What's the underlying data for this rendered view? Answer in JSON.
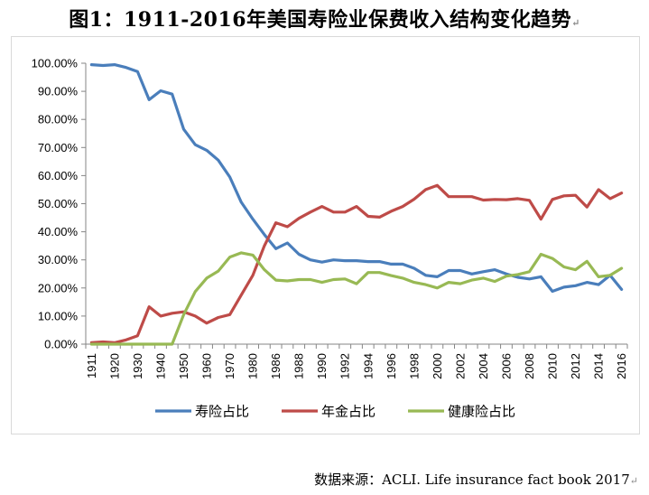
{
  "title": "图1：1911-2016年美国寿险业保费收入结构变化趋势",
  "source": "数据来源：ACLI. Life insurance fact book 2017",
  "chart_data": {
    "type": "line",
    "x": [
      "1911",
      "1915",
      "1920",
      "1925",
      "1930",
      "1935",
      "1940",
      "1945",
      "1950",
      "1955",
      "1960",
      "1965",
      "1970",
      "1975",
      "1980",
      "1985",
      "1986",
      "1987",
      "1988",
      "1989",
      "1990",
      "1991",
      "1992",
      "1993",
      "1994",
      "1995",
      "1996",
      "1997",
      "1998",
      "1999",
      "2000",
      "2001",
      "2002",
      "2003",
      "2004",
      "2005",
      "2006",
      "2007",
      "2008",
      "2009",
      "2010",
      "2011",
      "2012",
      "2013",
      "2014",
      "2015",
      "2016"
    ],
    "x_tick_labels": [
      "1911",
      "1920",
      "1930",
      "1940",
      "1950",
      "1960",
      "1970",
      "1980",
      "1986",
      "1988",
      "1990",
      "1992",
      "1994",
      "1996",
      "1998",
      "2000",
      "2002",
      "2004",
      "2006",
      "2008",
      "2010",
      "2012",
      "2014",
      "2016"
    ],
    "y_tick_labels": [
      "0.00%",
      "10.00%",
      "20.00%",
      "30.00%",
      "40.00%",
      "50.00%",
      "60.00%",
      "70.00%",
      "80.00%",
      "90.00%",
      "100.00%"
    ],
    "ylim": [
      0,
      100
    ],
    "grid": false,
    "legend_position": "bottom",
    "series": [
      {
        "name": "寿险占比",
        "color": "#4a7ebb",
        "values": [
          99.5,
          99.2,
          99.5,
          98.5,
          97.0,
          87.0,
          90.2,
          89.0,
          76.5,
          71.0,
          69.0,
          65.5,
          59.5,
          50.5,
          44.5,
          39.0,
          34.0,
          36.0,
          32.0,
          30.0,
          29.2,
          30.0,
          29.7,
          29.7,
          29.4,
          29.4,
          28.5,
          28.5,
          27.0,
          24.5,
          24.0,
          26.2,
          26.2,
          25.0,
          25.8,
          26.5,
          25.0,
          23.8,
          23.2,
          24.0,
          18.8,
          20.3,
          20.8,
          22.0,
          21.2,
          24.5,
          19.5
        ]
      },
      {
        "name": "年金占比",
        "color": "#be4b48",
        "values": [
          0.5,
          0.8,
          0.5,
          1.5,
          3.0,
          13.3,
          10.0,
          11.0,
          11.5,
          10.0,
          7.5,
          9.5,
          10.5,
          17.5,
          24.5,
          35.0,
          43.2,
          41.8,
          44.8,
          47.0,
          49.0,
          47.0,
          47.0,
          49.0,
          45.5,
          45.2,
          47.3,
          49.0,
          51.6,
          55.0,
          56.5,
          52.5,
          52.5,
          52.5,
          51.3,
          51.5,
          51.4,
          51.8,
          51.2,
          44.5,
          51.5,
          52.8,
          53.0,
          48.8,
          55.0,
          51.8,
          53.8
        ]
      },
      {
        "name": "健康险占比",
        "color": "#98b954",
        "values": [
          0,
          0,
          0,
          0,
          0,
          0,
          0,
          0,
          10.5,
          18.7,
          23.5,
          26.0,
          31.0,
          32.5,
          31.7,
          26.5,
          22.8,
          22.5,
          23.0,
          23.0,
          22.0,
          23.0,
          23.2,
          21.5,
          25.5,
          25.5,
          24.4,
          23.5,
          22.0,
          21.2,
          20.0,
          22.0,
          21.5,
          22.8,
          23.5,
          22.3,
          24.2,
          24.8,
          25.8,
          32.0,
          30.5,
          27.5,
          26.5,
          29.5,
          24.0,
          24.5,
          27.0
        ]
      }
    ]
  }
}
